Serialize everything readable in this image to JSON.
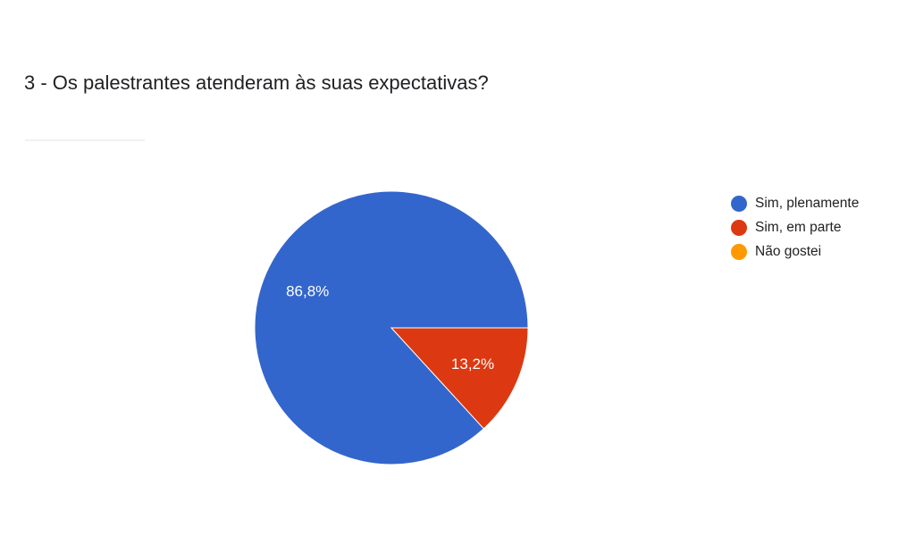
{
  "question": {
    "title": "3 - Os palestrantes atenderam às suas expectativas?"
  },
  "chart_data": {
    "type": "pie",
    "slices": [
      {
        "label": "Sim, plenamente",
        "value": 86.8,
        "display": "86,8%",
        "color": "#3366cc"
      },
      {
        "label": "Sim, em parte",
        "value": 13.2,
        "display": "13,2%",
        "color": "#dc3912"
      },
      {
        "label": "Não gostei",
        "value": 0,
        "display": "",
        "color": "#ff9900"
      }
    ],
    "legend_position": "right",
    "start_angle": "3 o'clock",
    "direction": "counterclockwise"
  }
}
